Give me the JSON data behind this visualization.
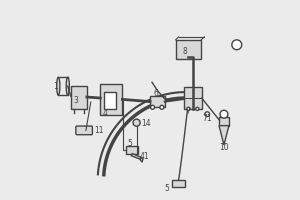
{
  "bg_color": "#ebebeb",
  "line_color": "#444444",
  "box_color": "#d8d8d8",
  "lw": 1.0,
  "label_fontsize": 5.5
}
